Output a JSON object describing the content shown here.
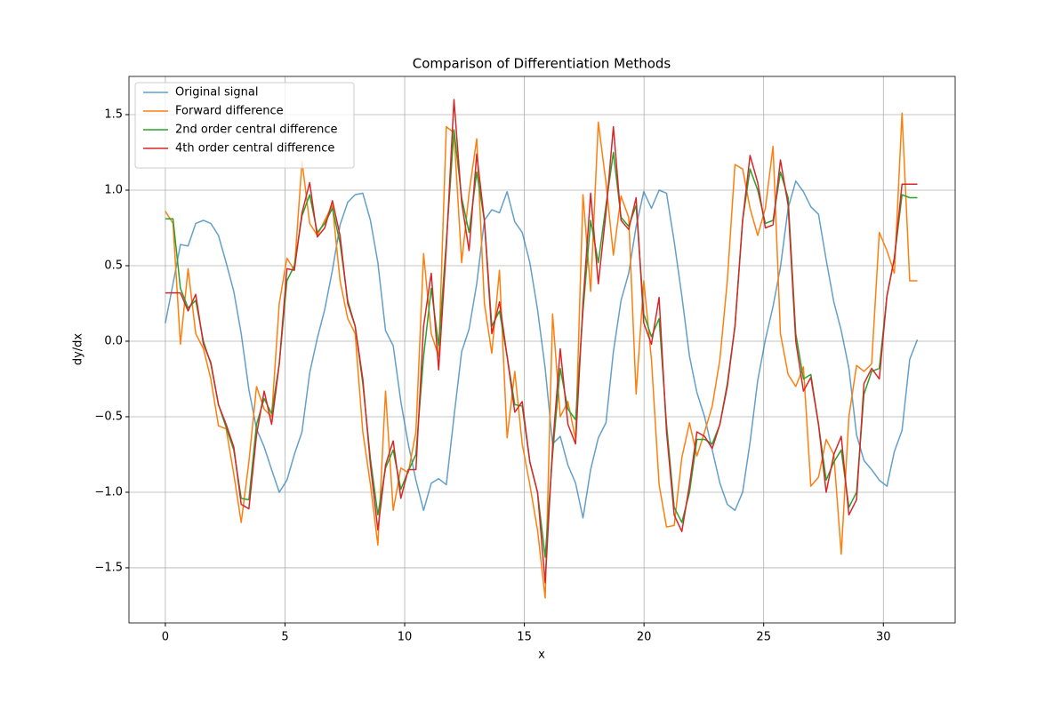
{
  "chart_data": {
    "type": "line",
    "title": "Comparison of Differentiation Methods",
    "xlabel": "x",
    "ylabel": "dy/dx",
    "xlim": [
      -1.52,
      33.0
    ],
    "ylim": [
      -1.865,
      1.753
    ],
    "xticks": [
      0,
      5,
      10,
      15,
      20,
      25,
      30
    ],
    "yticks": [
      {
        "value": -1.5,
        "label": "−1.5"
      },
      {
        "value": -1.0,
        "label": "−1.0"
      },
      {
        "value": -0.5,
        "label": "−0.5"
      },
      {
        "value": 0.0,
        "label": "0.0"
      },
      {
        "value": 0.5,
        "label": "0.5"
      },
      {
        "value": 1.0,
        "label": "1.0"
      },
      {
        "value": 1.5,
        "label": "1.5"
      }
    ],
    "grid": true,
    "legend": "upper left",
    "x": [
      0,
      0.32,
      0.63,
      0.95,
      1.27,
      1.59,
      1.9,
      2.22,
      2.54,
      2.86,
      3.17,
      3.49,
      3.81,
      4.13,
      4.44,
      4.76,
      5.08,
      5.39,
      5.71,
      6.03,
      6.35,
      6.66,
      6.98,
      7.3,
      7.62,
      7.93,
      8.25,
      8.57,
      8.88,
      9.2,
      9.52,
      9.84,
      10.15,
      10.47,
      10.79,
      11.11,
      11.42,
      11.74,
      12.06,
      12.38,
      12.69,
      13.01,
      13.33,
      13.64,
      13.96,
      14.28,
      14.6,
      14.91,
      15.23,
      15.55,
      15.87,
      16.18,
      16.5,
      16.82,
      17.14,
      17.45,
      17.77,
      18.09,
      18.41,
      18.72,
      19.04,
      19.36,
      19.67,
      19.99,
      20.31,
      20.63,
      20.94,
      21.26,
      21.58,
      21.9,
      22.21,
      22.53,
      22.85,
      23.17,
      23.48,
      23.8,
      24.12,
      24.43,
      24.75,
      25.07,
      25.39,
      25.7,
      26.02,
      26.34,
      26.66,
      26.97,
      27.29,
      27.61,
      27.93,
      28.24,
      28.56,
      28.88,
      29.19,
      29.51,
      29.83,
      30.15,
      30.46,
      30.78,
      31.1,
      31.42
    ],
    "series": [
      {
        "name": "Original signal",
        "color": "#1f77b4",
        "alpha": 0.7,
        "values": [
          0.12,
          0.38,
          0.64,
          0.63,
          0.78,
          0.8,
          0.78,
          0.7,
          0.52,
          0.33,
          0.05,
          -0.32,
          -0.58,
          -0.7,
          -0.85,
          -1.0,
          -0.92,
          -0.75,
          -0.6,
          -0.21,
          0.02,
          0.21,
          0.47,
          0.77,
          0.92,
          0.97,
          0.98,
          0.8,
          0.52,
          0.07,
          -0.03,
          -0.4,
          -0.68,
          -0.92,
          -1.12,
          -0.94,
          -0.91,
          -0.95,
          -0.5,
          -0.07,
          0.08,
          0.38,
          0.8,
          0.87,
          0.85,
          0.99,
          0.79,
          0.72,
          0.52,
          0.21,
          -0.18,
          -0.68,
          -0.63,
          -0.82,
          -0.94,
          -1.17,
          -0.85,
          -0.64,
          -0.54,
          -0.07,
          0.27,
          0.45,
          0.76,
          0.99,
          0.88,
          1.0,
          0.98,
          0.66,
          0.3,
          -0.1,
          -0.34,
          -0.5,
          -0.72,
          -0.94,
          -1.08,
          -1.12,
          -1.0,
          -0.67,
          -0.26,
          0.01,
          0.23,
          0.49,
          0.88,
          1.06,
          0.99,
          0.89,
          0.84,
          0.54,
          0.26,
          0.07,
          -0.18,
          -0.62,
          -0.79,
          -0.85,
          -0.92,
          -0.96,
          -0.73,
          -0.59,
          -0.12,
          0.01
        ]
      },
      {
        "name": "Forward difference",
        "color": "#ff7f0e",
        "alpha": 1,
        "values": [
          0.86,
          0.78,
          -0.02,
          0.48,
          0.05,
          -0.05,
          -0.25,
          -0.56,
          -0.58,
          -0.88,
          -1.2,
          -0.8,
          -0.3,
          -0.45,
          -0.5,
          0.25,
          0.55,
          0.47,
          1.19,
          0.78,
          0.7,
          0.8,
          0.9,
          0.4,
          0.15,
          0.05,
          -0.6,
          -0.95,
          -1.35,
          -0.33,
          -1.12,
          -0.84,
          -0.87,
          -0.6,
          0.58,
          0.05,
          -0.1,
          1.42,
          1.38,
          0.52,
          0.98,
          1.34,
          0.25,
          -0.08,
          0.47,
          -0.64,
          -0.2,
          -0.68,
          -0.95,
          -1.25,
          -1.7,
          0.18,
          -0.5,
          -0.4,
          -0.65,
          0.97,
          0.33,
          1.45,
          1.05,
          0.57,
          0.96,
          0.82,
          -0.35,
          0.4,
          -0.12,
          -0.95,
          -1.23,
          -1.22,
          -0.77,
          -0.54,
          -0.76,
          -0.6,
          -0.43,
          -0.12,
          0.4,
          1.17,
          1.14,
          0.88,
          0.7,
          0.88,
          1.29,
          0.05,
          -0.22,
          -0.3,
          -0.17,
          -0.96,
          -0.9,
          -0.65,
          -0.75,
          -1.41,
          -0.5,
          -0.16,
          -0.2,
          -0.15,
          0.72,
          0.6,
          0.45,
          1.51,
          0.4,
          0.4
        ]
      },
      {
        "name": "2nd order central difference",
        "color": "#2ca02c",
        "alpha": 1,
        "values": [
          0.81,
          0.81,
          0.35,
          0.22,
          0.27,
          0.0,
          -0.15,
          -0.42,
          -0.57,
          -0.72,
          -1.04,
          -1.05,
          -0.55,
          -0.38,
          -0.48,
          -0.15,
          0.4,
          0.5,
          0.83,
          0.97,
          0.72,
          0.78,
          0.88,
          0.65,
          0.27,
          0.1,
          -0.28,
          -0.78,
          -1.15,
          -0.84,
          -0.72,
          -0.98,
          -0.86,
          -0.75,
          -0.1,
          0.35,
          -0.03,
          0.66,
          1.4,
          0.95,
          0.72,
          1.12,
          0.8,
          0.1,
          0.2,
          -0.1,
          -0.42,
          -0.43,
          -0.8,
          -1.0,
          -1.43,
          -0.75,
          -0.18,
          -0.45,
          -0.52,
          0.2,
          0.8,
          0.52,
          0.9,
          1.25,
          0.82,
          0.76,
          0.9,
          0.18,
          0.03,
          0.15,
          -0.55,
          -1.1,
          -1.2,
          -1.0,
          -0.65,
          -0.65,
          -0.68,
          -0.55,
          -0.28,
          0.1,
          0.8,
          1.14,
          1.0,
          0.78,
          0.8,
          1.12,
          0.95,
          0.05,
          -0.25,
          -0.22,
          -0.55,
          -0.92,
          -0.8,
          -0.72,
          -1.1,
          -1.0,
          -0.35,
          -0.2,
          -0.18,
          0.3,
          0.55,
          0.97,
          0.95,
          0.95
        ]
      },
      {
        "name": "4th order central difference",
        "color": "#d62728",
        "alpha": 1,
        "values": [
          0.32,
          0.32,
          0.32,
          0.2,
          0.31,
          -0.02,
          -0.14,
          -0.42,
          -0.55,
          -0.7,
          -1.08,
          -1.11,
          -0.62,
          -0.33,
          -0.55,
          -0.15,
          0.48,
          0.47,
          0.85,
          1.05,
          0.69,
          0.75,
          0.93,
          0.7,
          0.25,
          0.1,
          -0.25,
          -0.82,
          -1.25,
          -0.82,
          -0.66,
          -1.04,
          -0.85,
          -0.85,
          0.1,
          0.45,
          -0.19,
          0.62,
          1.6,
          0.92,
          0.6,
          1.24,
          0.8,
          0.05,
          0.26,
          -0.1,
          -0.47,
          -0.4,
          -0.8,
          -1.0,
          -1.6,
          -0.7,
          -0.05,
          -0.55,
          -0.68,
          0.25,
          0.98,
          0.38,
          0.85,
          1.42,
          0.8,
          0.74,
          0.95,
          0.12,
          -0.02,
          0.29,
          -0.6,
          -1.15,
          -1.26,
          -0.95,
          -0.6,
          -0.63,
          -0.71,
          -0.55,
          -0.3,
          0.1,
          0.8,
          1.23,
          1.05,
          0.75,
          0.77,
          1.2,
          0.9,
          0.0,
          -0.33,
          -0.24,
          -0.55,
          -1.0,
          -0.75,
          -0.63,
          -1.15,
          -1.05,
          -0.28,
          -0.18,
          -0.25,
          0.3,
          0.55,
          1.04,
          1.04,
          1.04
        ]
      }
    ]
  }
}
